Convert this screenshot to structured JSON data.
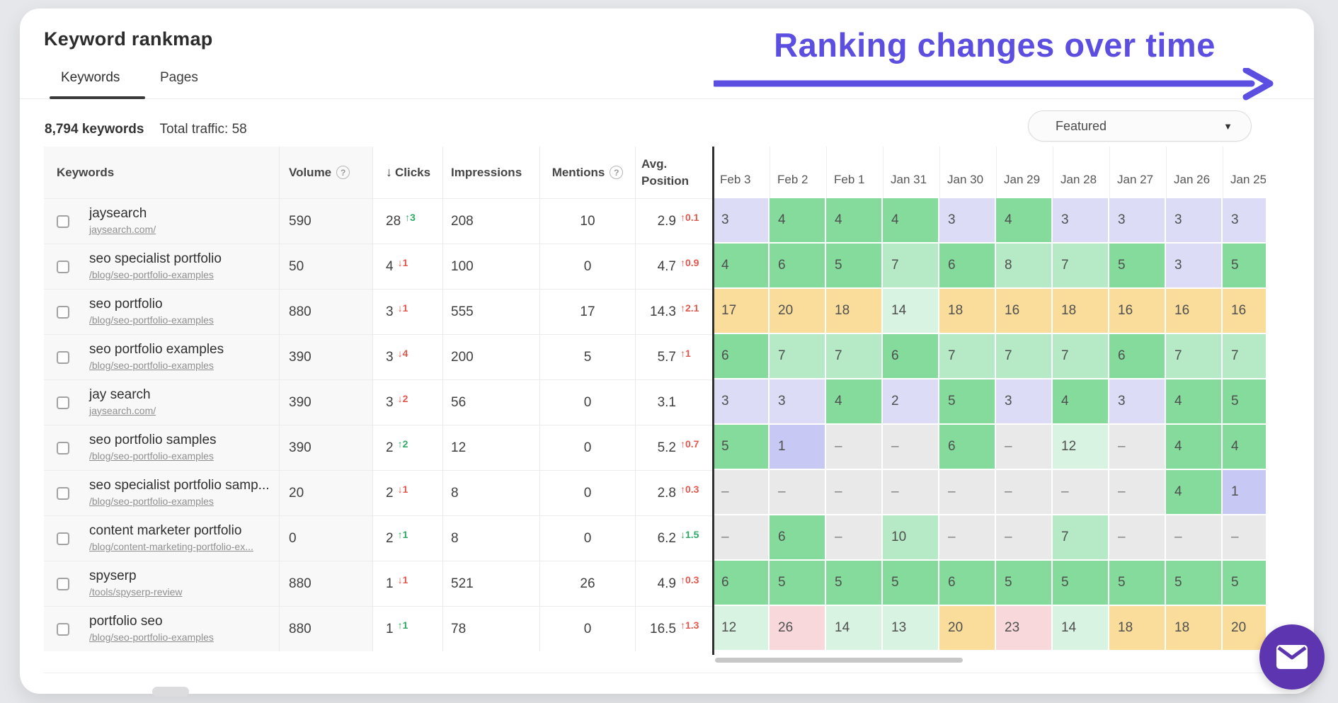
{
  "page": {
    "title": "Keyword rankmap"
  },
  "tabs": [
    {
      "label": "Keywords",
      "active": true
    },
    {
      "label": "Pages",
      "active": false
    }
  ],
  "annotation": {
    "text": "Ranking changes over time"
  },
  "stats": {
    "keywords_count": "8,794 keywords",
    "total_traffic": "Total traffic: 58"
  },
  "filter": {
    "selected": "Featured",
    "caret_icon": "▼"
  },
  "colors": {
    "accent_purple": "#5b4ee0",
    "chat_button": "#5e35b1",
    "delta_green": "#2fa865",
    "delta_red": "#e2574c",
    "rank_colors": {
      "pos_1": "#c7c9f4",
      "pos_2_3": "#dddcf7",
      "pos_4_6": "#84db9b",
      "pos_7_10": "#b6e9c6",
      "pos_11_15": "#d9f3e3",
      "pos_16_20": "#fadc9b",
      "pos_21_plus": "#f8d8db",
      "no_rank": "#e9e9e9"
    }
  },
  "table": {
    "columns": {
      "keywords": "Keywords",
      "volume": "Volume",
      "clicks": "Clicks",
      "impressions": "Impressions",
      "mentions": "Mentions",
      "avg_position": "Avg. Position"
    },
    "sort_icon": "↓",
    "help_icon": "?",
    "no_rank_char": "–",
    "date_columns": [
      "Feb 3",
      "Feb 2",
      "Feb 1",
      "Jan 31",
      "Jan 30",
      "Jan 29",
      "Jan 28",
      "Jan 27",
      "Jan 26",
      "Jan 25"
    ],
    "rows": [
      {
        "keyword": "jaysearch",
        "url": "jaysearch.com/",
        "volume": "590",
        "clicks": "28",
        "clicks_delta": {
          "dir": "up",
          "value": "3"
        },
        "impressions": "208",
        "mentions": "10",
        "avg_position": "2.9",
        "avg_delta": {
          "dir": "up",
          "value": "0.1"
        },
        "positions": [
          3,
          4,
          4,
          4,
          3,
          4,
          3,
          3,
          3,
          3
        ]
      },
      {
        "keyword": "seo specialist portfolio",
        "url": "/blog/seo-portfolio-examples",
        "volume": "50",
        "clicks": "4",
        "clicks_delta": {
          "dir": "down",
          "value": "1"
        },
        "impressions": "100",
        "mentions": "0",
        "avg_position": "4.7",
        "avg_delta": {
          "dir": "up",
          "value": "0.9"
        },
        "positions": [
          4,
          6,
          5,
          7,
          6,
          8,
          7,
          5,
          3,
          5
        ]
      },
      {
        "keyword": "seo portfolio",
        "url": "/blog/seo-portfolio-examples",
        "volume": "880",
        "clicks": "3",
        "clicks_delta": {
          "dir": "down",
          "value": "1"
        },
        "impressions": "555",
        "mentions": "17",
        "avg_position": "14.3",
        "avg_delta": {
          "dir": "up",
          "value": "2.1"
        },
        "positions": [
          17,
          20,
          18,
          14,
          18,
          16,
          18,
          16,
          16,
          16
        ]
      },
      {
        "keyword": "seo portfolio examples",
        "url": "/blog/seo-portfolio-examples",
        "volume": "390",
        "clicks": "3",
        "clicks_delta": {
          "dir": "down",
          "value": "4"
        },
        "impressions": "200",
        "mentions": "5",
        "avg_position": "5.7",
        "avg_delta": {
          "dir": "up",
          "value": "1"
        },
        "positions": [
          6,
          7,
          7,
          6,
          7,
          7,
          7,
          6,
          7,
          7
        ]
      },
      {
        "keyword": "jay search",
        "url": "jaysearch.com/",
        "volume": "390",
        "clicks": "3",
        "clicks_delta": {
          "dir": "down",
          "value": "2"
        },
        "impressions": "56",
        "mentions": "0",
        "avg_position": "3.1",
        "avg_delta": null,
        "positions": [
          3,
          3,
          4,
          2,
          5,
          3,
          4,
          3,
          4,
          5
        ]
      },
      {
        "keyword": "seo portfolio samples",
        "url": "/blog/seo-portfolio-examples",
        "volume": "390",
        "clicks": "2",
        "clicks_delta": {
          "dir": "up",
          "value": "2"
        },
        "impressions": "12",
        "mentions": "0",
        "avg_position": "5.2",
        "avg_delta": {
          "dir": "up",
          "value": "0.7"
        },
        "positions": [
          5,
          1,
          null,
          null,
          6,
          null,
          12,
          null,
          4,
          4
        ]
      },
      {
        "keyword": "seo specialist portfolio samp...",
        "url": "/blog/seo-portfolio-examples",
        "volume": "20",
        "clicks": "2",
        "clicks_delta": {
          "dir": "down",
          "value": "1"
        },
        "impressions": "8",
        "mentions": "0",
        "avg_position": "2.8",
        "avg_delta": {
          "dir": "up",
          "value": "0.3"
        },
        "positions": [
          null,
          null,
          null,
          null,
          null,
          null,
          null,
          null,
          4,
          1
        ]
      },
      {
        "keyword": "content marketer portfolio",
        "url": "/blog/content-marketing-portfolio-ex...",
        "volume": "0",
        "clicks": "2",
        "clicks_delta": {
          "dir": "up",
          "value": "1"
        },
        "impressions": "8",
        "mentions": "0",
        "avg_position": "6.2",
        "avg_delta": {
          "dir": "down",
          "value": "1.5"
        },
        "positions": [
          null,
          6,
          null,
          10,
          null,
          null,
          7,
          null,
          null,
          null
        ]
      },
      {
        "keyword": "spyserp",
        "url": "/tools/spyserp-review",
        "volume": "880",
        "clicks": "1",
        "clicks_delta": {
          "dir": "down",
          "value": "1"
        },
        "impressions": "521",
        "mentions": "26",
        "avg_position": "4.9",
        "avg_delta": {
          "dir": "up",
          "value": "0.3"
        },
        "positions": [
          6,
          5,
          5,
          5,
          6,
          5,
          5,
          5,
          5,
          5
        ]
      },
      {
        "keyword": "portfolio seo",
        "url": "/blog/seo-portfolio-examples",
        "volume": "880",
        "clicks": "1",
        "clicks_delta": {
          "dir": "up",
          "value": "1"
        },
        "impressions": "78",
        "mentions": "0",
        "avg_position": "16.5",
        "avg_delta": {
          "dir": "up",
          "value": "1.3"
        },
        "positions": [
          12,
          26,
          14,
          13,
          20,
          23,
          14,
          18,
          18,
          20
        ]
      }
    ]
  },
  "chat": {
    "icon": "envelope"
  }
}
